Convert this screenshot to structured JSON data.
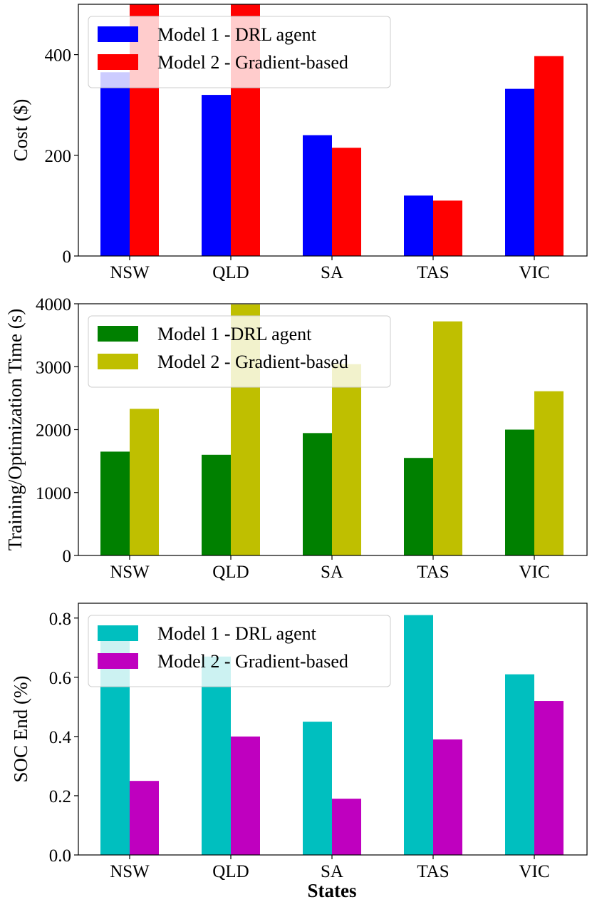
{
  "figure": {
    "shared_xlabel": "States"
  },
  "chart_data": [
    {
      "type": "bar",
      "categories": [
        "NSW",
        "QLD",
        "SA",
        "TAS",
        "VIC"
      ],
      "ylabel": "Cost ($)",
      "xlabel": "",
      "ylim": [
        0,
        500
      ],
      "yticks": [
        0,
        200,
        400
      ],
      "legend_position": "top-left",
      "colors": [
        "#0000ff",
        "#ff0000"
      ],
      "series": [
        {
          "name": "Model 1 - DRL agent",
          "values": [
            365,
            320,
            240,
            120,
            332
          ]
        },
        {
          "name": "Model 2 - Gradient-based",
          "values": [
            500,
            500,
            215,
            110,
            397
          ]
        }
      ]
    },
    {
      "type": "bar",
      "categories": [
        "NSW",
        "QLD",
        "SA",
        "TAS",
        "VIC"
      ],
      "ylabel": "Training/Optimization Time (s)",
      "xlabel": "",
      "ylim": [
        0,
        4000
      ],
      "yticks": [
        0,
        1000,
        2000,
        3000,
        4000
      ],
      "legend_position": "top-left",
      "colors": [
        "#008000",
        "#bfbf00"
      ],
      "series": [
        {
          "name": "Model 1 -DRL agent",
          "values": [
            1650,
            1600,
            1945,
            1550,
            2000
          ]
        },
        {
          "name": "Model 2 - Gradient-based",
          "values": [
            2330,
            3990,
            3040,
            3720,
            2610
          ]
        }
      ]
    },
    {
      "type": "bar",
      "categories": [
        "NSW",
        "QLD",
        "SA",
        "TAS",
        "VIC"
      ],
      "ylabel": "SOC End (%)",
      "xlabel": "States",
      "ylim": [
        0,
        0.85
      ],
      "yticks": [
        0.0,
        0.2,
        0.4,
        0.6,
        0.8
      ],
      "tick_decimals": 1,
      "legend_position": "top-left",
      "colors": [
        "#00bfbf",
        "#bf00bf"
      ],
      "series": [
        {
          "name": "Model 1 - DRL agent",
          "values": [
            0.74,
            0.67,
            0.45,
            0.81,
            0.61
          ]
        },
        {
          "name": "Model 2 - Gradient-based",
          "values": [
            0.25,
            0.4,
            0.19,
            0.39,
            0.52
          ]
        }
      ]
    }
  ]
}
